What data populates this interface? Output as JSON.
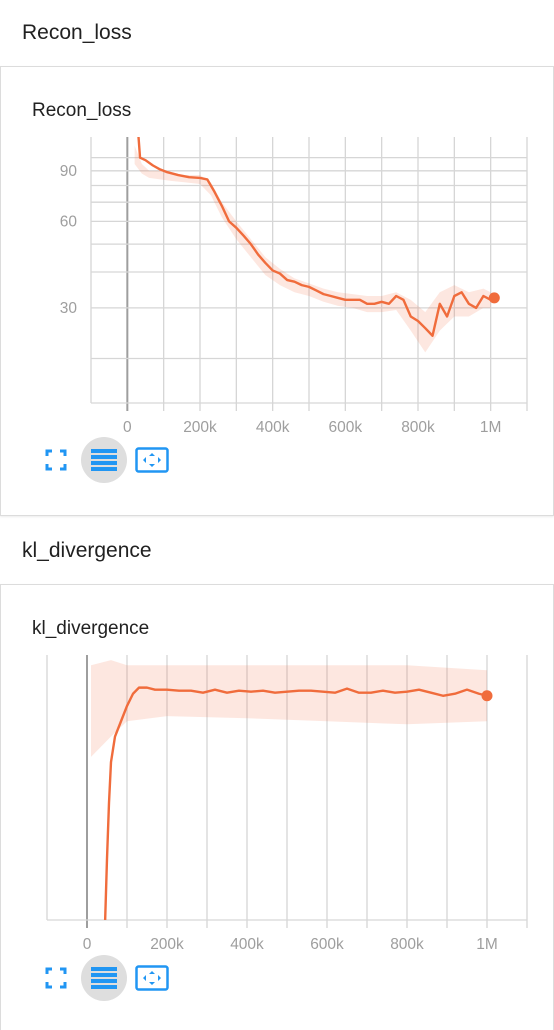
{
  "sections": [
    {
      "title": "Recon_loss",
      "card_title": "Recon_loss",
      "chart_data": {
        "type": "line",
        "title": "Recon_loss",
        "xlabel": "",
        "ylabel": "",
        "xlim": [
          -100000,
          1100000
        ],
        "ylim": [
          14,
          118
        ],
        "x_ticks": [
          0,
          200000,
          400000,
          600000,
          800000,
          1000000
        ],
        "x_tick_labels": [
          "0",
          "200k",
          "400k",
          "600k",
          "800k",
          "1M"
        ],
        "y_ticks": [
          30,
          60,
          90
        ],
        "y_tick_labels": [
          "30",
          "60",
          "90"
        ],
        "log_scale_y": true,
        "grid": true,
        "series": [
          {
            "color": "#f06c3c",
            "smoothed": [
              [
                20000,
                180
              ],
              [
                35000,
                100
              ],
              [
                50000,
                98
              ],
              [
                70000,
                94
              ],
              [
                90000,
                91
              ],
              [
                110000,
                89
              ],
              [
                140000,
                87
              ],
              [
                170000,
                85.5
              ],
              [
                200000,
                85
              ],
              [
                220000,
                84
              ],
              [
                240000,
                76
              ],
              [
                260000,
                68
              ],
              [
                280000,
                60
              ],
              [
                300000,
                57
              ],
              [
                320000,
                53.5
              ],
              [
                340000,
                50
              ],
              [
                360000,
                46
              ],
              [
                380000,
                43
              ],
              [
                400000,
                40.5
              ],
              [
                420000,
                39.5
              ],
              [
                440000,
                37.5
              ],
              [
                460000,
                37
              ],
              [
                480000,
                36
              ],
              [
                500000,
                35.5
              ],
              [
                520000,
                34.5
              ],
              [
                540000,
                33.5
              ],
              [
                560000,
                33
              ],
              [
                580000,
                32.5
              ],
              [
                600000,
                32
              ],
              [
                620000,
                32
              ],
              [
                640000,
                32
              ],
              [
                660000,
                31
              ],
              [
                680000,
                31
              ],
              [
                700000,
                31.5
              ],
              [
                720000,
                31
              ],
              [
                740000,
                33
              ],
              [
                760000,
                32
              ],
              [
                780000,
                28
              ],
              [
                800000,
                27
              ],
              [
                820000,
                25.5
              ],
              [
                840000,
                24
              ],
              [
                860000,
                31
              ],
              [
                880000,
                28
              ],
              [
                900000,
                33
              ],
              [
                920000,
                34
              ],
              [
                940000,
                31
              ],
              [
                960000,
                30
              ],
              [
                980000,
                33
              ],
              [
                1000000,
                32
              ],
              [
                1010000,
                32.5
              ]
            ],
            "raw_band": [
              [
                20000,
                110
              ],
              [
                40000,
                95
              ],
              [
                60000,
                90
              ],
              [
                90000,
                90
              ],
              [
                120000,
                88
              ],
              [
                160000,
                87
              ],
              [
                200000,
                87
              ],
              [
                230000,
                82
              ],
              [
                260000,
                70
              ],
              [
                300000,
                60
              ],
              [
                340000,
                52
              ],
              [
                380000,
                45
              ],
              [
                420000,
                41
              ],
              [
                460000,
                38
              ],
              [
                500000,
                36.5
              ],
              [
                540000,
                35
              ],
              [
                580000,
                34
              ],
              [
                620000,
                33.5
              ],
              [
                660000,
                33
              ],
              [
                700000,
                33
              ],
              [
                740000,
                34
              ],
              [
                780000,
                32
              ],
              [
                820000,
                29
              ],
              [
                860000,
                34
              ],
              [
                900000,
                36
              ],
              [
                940000,
                34
              ],
              [
                980000,
                35
              ],
              [
                1000000,
                34
              ]
            ],
            "raw_band_low": [
              [
                20000,
                95
              ],
              [
                40000,
                88
              ],
              [
                60000,
                85
              ],
              [
                90000,
                84
              ],
              [
                120000,
                83
              ],
              [
                160000,
                82
              ],
              [
                200000,
                81
              ],
              [
                230000,
                74
              ],
              [
                260000,
                62
              ],
              [
                300000,
                52
              ],
              [
                340000,
                45
              ],
              [
                380000,
                39
              ],
              [
                420000,
                36
              ],
              [
                460000,
                34
              ],
              [
                500000,
                33
              ],
              [
                540000,
                31.5
              ],
              [
                580000,
                30.5
              ],
              [
                620000,
                30
              ],
              [
                660000,
                29
              ],
              [
                700000,
                29
              ],
              [
                740000,
                29.5
              ],
              [
                780000,
                25
              ],
              [
                820000,
                21
              ],
              [
                860000,
                25
              ],
              [
                900000,
                28
              ],
              [
                940000,
                28
              ],
              [
                980000,
                30
              ],
              [
                1000000,
                30
              ]
            ]
          }
        ]
      }
    },
    {
      "title": "kl_divergence",
      "card_title": "kl_divergence",
      "chart_data": {
        "type": "line",
        "title": "kl_divergence",
        "xlabel": "",
        "ylabel": "",
        "xlim": [
          -100000,
          1100000
        ],
        "ylim": [
          -1.2,
          1.4
        ],
        "x_ticks": [
          0,
          200000,
          400000,
          600000,
          800000,
          1000000
        ],
        "x_tick_labels": [
          "0",
          "200k",
          "400k",
          "600k",
          "800k",
          "1M"
        ],
        "y_ticks": [],
        "y_tick_labels": [],
        "grid": true,
        "series": [
          {
            "color": "#f06c3c",
            "smoothed": [
              [
                45000,
                -1.25
              ],
              [
                50000,
                -0.6
              ],
              [
                55000,
                -0.05
              ],
              [
                60000,
                0.35
              ],
              [
                70000,
                0.6
              ],
              [
                85000,
                0.75
              ],
              [
                100000,
                0.9
              ],
              [
                115000,
                1.02
              ],
              [
                130000,
                1.08
              ],
              [
                150000,
                1.08
              ],
              [
                170000,
                1.06
              ],
              [
                200000,
                1.06
              ],
              [
                230000,
                1.05
              ],
              [
                260000,
                1.05
              ],
              [
                290000,
                1.03
              ],
              [
                320000,
                1.06
              ],
              [
                350000,
                1.03
              ],
              [
                380000,
                1.05
              ],
              [
                410000,
                1.04
              ],
              [
                440000,
                1.05
              ],
              [
                470000,
                1.03
              ],
              [
                500000,
                1.04
              ],
              [
                530000,
                1.05
              ],
              [
                560000,
                1.05
              ],
              [
                590000,
                1.04
              ],
              [
                620000,
                1.03
              ],
              [
                650000,
                1.07
              ],
              [
                680000,
                1.03
              ],
              [
                710000,
                1.03
              ],
              [
                740000,
                1.05
              ],
              [
                770000,
                1.03
              ],
              [
                800000,
                1.04
              ],
              [
                830000,
                1.06
              ],
              [
                860000,
                1.03
              ],
              [
                890000,
                1.0
              ],
              [
                920000,
                1.02
              ],
              [
                950000,
                1.06
              ],
              [
                980000,
                1.02
              ],
              [
                1000000,
                1.0
              ]
            ],
            "raw_band": [
              [
                10000,
                1.3
              ],
              [
                60000,
                1.35
              ],
              [
                100000,
                1.3
              ],
              [
                200000,
                1.3
              ],
              [
                400000,
                1.3
              ],
              [
                600000,
                1.3
              ],
              [
                800000,
                1.3
              ],
              [
                1000000,
                1.25
              ]
            ],
            "raw_band_low": [
              [
                10000,
                0.4
              ],
              [
                60000,
                0.6
              ],
              [
                100000,
                0.75
              ],
              [
                200000,
                0.8
              ],
              [
                400000,
                0.78
              ],
              [
                600000,
                0.75
              ],
              [
                800000,
                0.72
              ],
              [
                1000000,
                0.75
              ]
            ]
          }
        ]
      }
    }
  ],
  "toolbar": {
    "icons": [
      "fullscreen-icon",
      "lines-icon",
      "fit-domain-icon"
    ],
    "accent": "#2196f3"
  }
}
